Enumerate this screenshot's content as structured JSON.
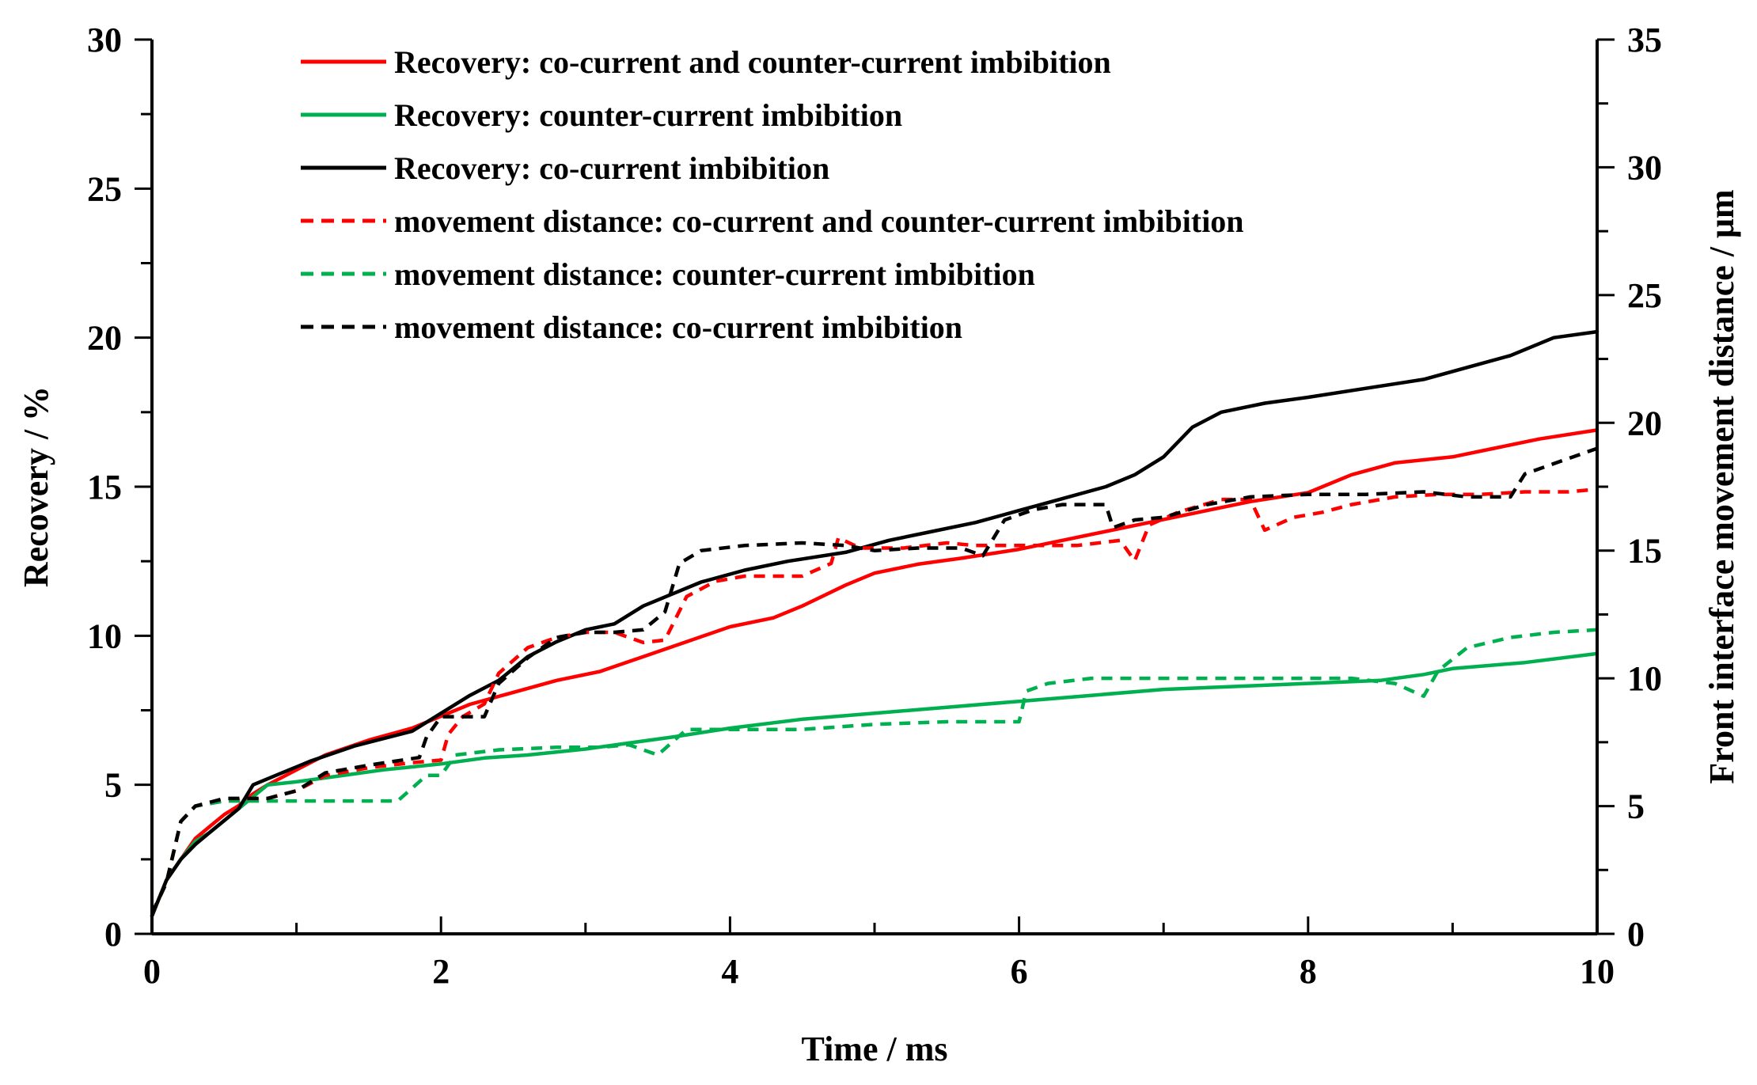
{
  "chart_data": {
    "type": "line",
    "title": "",
    "xlabel": "Time / ms",
    "ylabel": "Recovery / %",
    "y2label": "Front interface  movement distance / μm",
    "xlim": [
      0,
      10
    ],
    "ylim": [
      0,
      30
    ],
    "y2lim": [
      0,
      35
    ],
    "x_ticks": [
      0,
      2,
      4,
      6,
      8,
      10
    ],
    "y_ticks": [
      0,
      5,
      10,
      15,
      20,
      25,
      30
    ],
    "y2_ticks": [
      0,
      5,
      10,
      15,
      20,
      25,
      30,
      35
    ],
    "legend_position": "top",
    "series": [
      {
        "name": "Recovery: co-current and counter-current imbibition",
        "axis": "left",
        "color": "#ff0000",
        "dash": "solid",
        "points": [
          [
            0,
            0.6
          ],
          [
            0.05,
            1.2
          ],
          [
            0.1,
            1.8
          ],
          [
            0.2,
            2.5
          ],
          [
            0.3,
            3.2
          ],
          [
            0.4,
            3.6
          ],
          [
            0.5,
            4.0
          ],
          [
            0.6,
            4.3
          ],
          [
            0.7,
            4.7
          ],
          [
            0.8,
            5.0
          ],
          [
            1.0,
            5.5
          ],
          [
            1.2,
            6.0
          ],
          [
            1.5,
            6.5
          ],
          [
            1.8,
            6.9
          ],
          [
            2.0,
            7.3
          ],
          [
            2.2,
            7.7
          ],
          [
            2.5,
            8.1
          ],
          [
            2.8,
            8.5
          ],
          [
            3.1,
            8.8
          ],
          [
            3.4,
            9.3
          ],
          [
            3.7,
            9.8
          ],
          [
            4.0,
            10.3
          ],
          [
            4.3,
            10.6
          ],
          [
            4.5,
            11.0
          ],
          [
            4.8,
            11.7
          ],
          [
            5.0,
            12.1
          ],
          [
            5.3,
            12.4
          ],
          [
            5.6,
            12.6
          ],
          [
            6.0,
            12.9
          ],
          [
            6.3,
            13.2
          ],
          [
            6.6,
            13.5
          ],
          [
            7.0,
            13.9
          ],
          [
            7.3,
            14.2
          ],
          [
            7.6,
            14.5
          ],
          [
            8.0,
            14.8
          ],
          [
            8.3,
            15.4
          ],
          [
            8.6,
            15.8
          ],
          [
            9.0,
            16.0
          ],
          [
            9.3,
            16.3
          ],
          [
            9.6,
            16.6
          ],
          [
            10.0,
            16.9
          ]
        ]
      },
      {
        "name": "Recovery: counter-current imbibition",
        "axis": "left",
        "color": "#00b050",
        "dash": "solid",
        "points": [
          [
            0,
            0.6
          ],
          [
            0.05,
            1.2
          ],
          [
            0.1,
            1.8
          ],
          [
            0.2,
            2.5
          ],
          [
            0.3,
            3.1
          ],
          [
            0.4,
            3.4
          ],
          [
            0.5,
            3.8
          ],
          [
            0.6,
            4.2
          ],
          [
            0.7,
            4.6
          ],
          [
            0.8,
            5.0
          ],
          [
            1.0,
            5.1
          ],
          [
            1.3,
            5.3
          ],
          [
            1.6,
            5.5
          ],
          [
            2.0,
            5.7
          ],
          [
            2.3,
            5.9
          ],
          [
            2.6,
            6.0
          ],
          [
            3.0,
            6.2
          ],
          [
            3.3,
            6.4
          ],
          [
            3.6,
            6.6
          ],
          [
            4.0,
            6.9
          ],
          [
            4.5,
            7.2
          ],
          [
            5.0,
            7.4
          ],
          [
            5.5,
            7.6
          ],
          [
            6.0,
            7.8
          ],
          [
            6.5,
            8.0
          ],
          [
            7.0,
            8.2
          ],
          [
            7.5,
            8.3
          ],
          [
            8.0,
            8.4
          ],
          [
            8.5,
            8.5
          ],
          [
            8.8,
            8.7
          ],
          [
            9.0,
            8.9
          ],
          [
            9.5,
            9.1
          ],
          [
            10.0,
            9.4
          ]
        ]
      },
      {
        "name": "Recovery: co-current imbibition",
        "axis": "left",
        "color": "#000000",
        "dash": "solid",
        "points": [
          [
            0,
            0.6
          ],
          [
            0.05,
            1.2
          ],
          [
            0.1,
            1.8
          ],
          [
            0.2,
            2.5
          ],
          [
            0.3,
            3.0
          ],
          [
            0.4,
            3.4
          ],
          [
            0.5,
            3.8
          ],
          [
            0.6,
            4.2
          ],
          [
            0.7,
            5.0
          ],
          [
            0.9,
            5.4
          ],
          [
            1.1,
            5.8
          ],
          [
            1.4,
            6.3
          ],
          [
            1.8,
            6.8
          ],
          [
            2.0,
            7.4
          ],
          [
            2.2,
            8.0
          ],
          [
            2.4,
            8.5
          ],
          [
            2.6,
            9.3
          ],
          [
            2.8,
            9.8
          ],
          [
            3.0,
            10.2
          ],
          [
            3.2,
            10.4
          ],
          [
            3.4,
            11.0
          ],
          [
            3.6,
            11.4
          ],
          [
            3.8,
            11.8
          ],
          [
            4.1,
            12.2
          ],
          [
            4.4,
            12.5
          ],
          [
            4.8,
            12.8
          ],
          [
            5.1,
            13.2
          ],
          [
            5.4,
            13.5
          ],
          [
            5.7,
            13.8
          ],
          [
            6.0,
            14.2
          ],
          [
            6.3,
            14.6
          ],
          [
            6.6,
            15.0
          ],
          [
            6.8,
            15.4
          ],
          [
            7.0,
            16.0
          ],
          [
            7.2,
            17.0
          ],
          [
            7.4,
            17.5
          ],
          [
            7.7,
            17.8
          ],
          [
            8.0,
            18.0
          ],
          [
            8.4,
            18.3
          ],
          [
            8.8,
            18.6
          ],
          [
            9.1,
            19.0
          ],
          [
            9.4,
            19.4
          ],
          [
            9.7,
            20.0
          ],
          [
            10.0,
            20.2
          ]
        ]
      },
      {
        "name": "movement distance: co-current and counter-current imbibition",
        "axis": "right",
        "color": "#ff0000",
        "dash": "dashed",
        "points": [
          [
            0,
            0.8
          ],
          [
            0.1,
            2.0
          ],
          [
            0.2,
            4.4
          ],
          [
            0.3,
            5.0
          ],
          [
            0.5,
            5.2
          ],
          [
            0.8,
            5.3
          ],
          [
            1.0,
            5.6
          ],
          [
            1.2,
            6.2
          ],
          [
            1.5,
            6.5
          ],
          [
            1.8,
            6.7
          ],
          [
            2.0,
            6.8
          ],
          [
            2.05,
            7.8
          ],
          [
            2.15,
            8.5
          ],
          [
            2.3,
            9.0
          ],
          [
            2.4,
            10.2
          ],
          [
            2.6,
            11.2
          ],
          [
            2.8,
            11.6
          ],
          [
            3.0,
            11.8
          ],
          [
            3.2,
            11.8
          ],
          [
            3.4,
            11.4
          ],
          [
            3.55,
            11.5
          ],
          [
            3.7,
            13.2
          ],
          [
            3.9,
            13.8
          ],
          [
            4.1,
            14.0
          ],
          [
            4.3,
            14.0
          ],
          [
            4.5,
            14.0
          ],
          [
            4.7,
            14.5
          ],
          [
            4.75,
            15.5
          ],
          [
            4.9,
            15.1
          ],
          [
            5.2,
            15.1
          ],
          [
            5.5,
            15.3
          ],
          [
            5.7,
            15.2
          ],
          [
            6.0,
            15.2
          ],
          [
            6.4,
            15.2
          ],
          [
            6.7,
            15.4
          ],
          [
            6.8,
            14.6
          ],
          [
            6.9,
            16.0
          ],
          [
            7.1,
            16.5
          ],
          [
            7.4,
            17.0
          ],
          [
            7.6,
            17.0
          ],
          [
            7.7,
            15.8
          ],
          [
            7.9,
            16.3
          ],
          [
            8.1,
            16.5
          ],
          [
            8.3,
            16.8
          ],
          [
            8.6,
            17.1
          ],
          [
            8.9,
            17.2
          ],
          [
            9.2,
            17.2
          ],
          [
            9.5,
            17.3
          ],
          [
            9.8,
            17.3
          ],
          [
            10.0,
            17.4
          ]
        ]
      },
      {
        "name": "movement distance: counter-current imbibition",
        "axis": "right",
        "color": "#00b050",
        "dash": "dashed",
        "points": [
          [
            0,
            0.8
          ],
          [
            0.1,
            2.0
          ],
          [
            0.2,
            4.4
          ],
          [
            0.3,
            5.0
          ],
          [
            0.5,
            5.2
          ],
          [
            0.8,
            5.2
          ],
          [
            1.0,
            5.2
          ],
          [
            1.3,
            5.2
          ],
          [
            1.5,
            5.2
          ],
          [
            1.7,
            5.2
          ],
          [
            1.9,
            6.2
          ],
          [
            2.0,
            6.2
          ],
          [
            2.1,
            7.0
          ],
          [
            2.4,
            7.2
          ],
          [
            2.8,
            7.3
          ],
          [
            3.1,
            7.3
          ],
          [
            3.3,
            7.4
          ],
          [
            3.5,
            7.0
          ],
          [
            3.7,
            8.0
          ],
          [
            4.0,
            8.0
          ],
          [
            4.5,
            8.0
          ],
          [
            5.0,
            8.2
          ],
          [
            5.5,
            8.3
          ],
          [
            6.0,
            8.3
          ],
          [
            6.05,
            9.5
          ],
          [
            6.2,
            9.8
          ],
          [
            6.5,
            10.0
          ],
          [
            7.0,
            10.0
          ],
          [
            7.5,
            10.0
          ],
          [
            8.0,
            10.0
          ],
          [
            8.3,
            10.0
          ],
          [
            8.6,
            9.8
          ],
          [
            8.8,
            9.3
          ],
          [
            8.9,
            10.3
          ],
          [
            9.1,
            11.2
          ],
          [
            9.4,
            11.6
          ],
          [
            9.7,
            11.8
          ],
          [
            10.0,
            11.9
          ]
        ]
      },
      {
        "name": "movement distance: co-current imbibition",
        "axis": "right",
        "color": "#000000",
        "dash": "dashed",
        "points": [
          [
            0,
            0.8
          ],
          [
            0.1,
            2.0
          ],
          [
            0.2,
            4.4
          ],
          [
            0.3,
            5.0
          ],
          [
            0.5,
            5.3
          ],
          [
            0.8,
            5.3
          ],
          [
            1.0,
            5.6
          ],
          [
            1.2,
            6.3
          ],
          [
            1.5,
            6.6
          ],
          [
            1.85,
            6.9
          ],
          [
            1.9,
            7.7
          ],
          [
            2.0,
            8.5
          ],
          [
            2.3,
            8.5
          ],
          [
            2.4,
            9.8
          ],
          [
            2.6,
            10.8
          ],
          [
            2.8,
            11.6
          ],
          [
            3.0,
            11.8
          ],
          [
            3.2,
            11.8
          ],
          [
            3.4,
            11.9
          ],
          [
            3.55,
            12.6
          ],
          [
            3.65,
            14.5
          ],
          [
            3.8,
            15.0
          ],
          [
            4.1,
            15.2
          ],
          [
            4.5,
            15.3
          ],
          [
            4.8,
            15.2
          ],
          [
            5.0,
            15.0
          ],
          [
            5.3,
            15.1
          ],
          [
            5.6,
            15.1
          ],
          [
            5.75,
            14.8
          ],
          [
            5.9,
            16.2
          ],
          [
            6.1,
            16.6
          ],
          [
            6.3,
            16.8
          ],
          [
            6.6,
            16.8
          ],
          [
            6.65,
            15.9
          ],
          [
            6.8,
            16.2
          ],
          [
            7.0,
            16.3
          ],
          [
            7.3,
            16.8
          ],
          [
            7.6,
            17.1
          ],
          [
            8.0,
            17.2
          ],
          [
            8.4,
            17.2
          ],
          [
            8.8,
            17.3
          ],
          [
            9.1,
            17.1
          ],
          [
            9.4,
            17.1
          ],
          [
            9.5,
            18.0
          ],
          [
            9.7,
            18.4
          ],
          [
            10.0,
            19.0
          ]
        ]
      }
    ]
  }
}
